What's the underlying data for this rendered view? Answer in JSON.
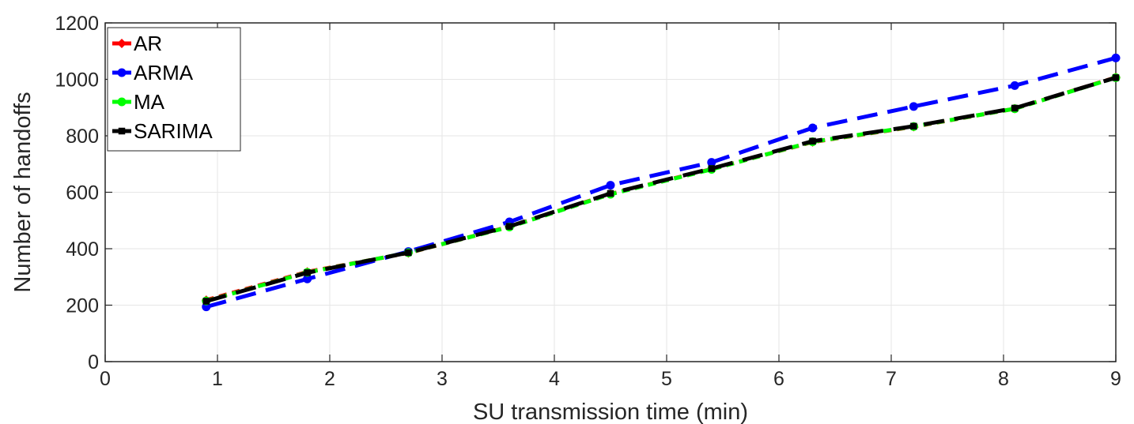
{
  "chart_data": {
    "type": "line",
    "title": "",
    "xlabel": "SU transmission time (min)",
    "ylabel": "Number of handoffs",
    "xlim": [
      0,
      9
    ],
    "ylim": [
      0,
      1200
    ],
    "xticks": [
      0,
      1,
      2,
      3,
      4,
      5,
      6,
      7,
      8,
      9
    ],
    "yticks": [
      0,
      200,
      400,
      600,
      800,
      1000,
      1200
    ],
    "grid": true,
    "legend_position": "top-left",
    "x": [
      0.9,
      1.8,
      2.7,
      3.6,
      4.5,
      5.4,
      6.3,
      7.2,
      8.1,
      9.0
    ],
    "series": [
      {
        "name": "AR",
        "color": "#ff0000",
        "line_style": "dotted",
        "marker": "diamond",
        "values": [
          218,
          318,
          385,
          478,
          594,
          682,
          778,
          832,
          896,
          1007
        ]
      },
      {
        "name": "ARMA",
        "color": "#0000ff",
        "line_style": "dashed",
        "marker": "circle",
        "values": [
          194,
          293,
          390,
          495,
          625,
          706,
          828,
          904,
          978,
          1076
        ]
      },
      {
        "name": "MA",
        "color": "#00ff00",
        "line_style": "dotted",
        "marker": "circle",
        "values": [
          215,
          316,
          386,
          477,
          593,
          681,
          779,
          833,
          896,
          1006
        ]
      },
      {
        "name": "SARIMA",
        "color": "#000000",
        "line_style": "dashed",
        "marker": "square",
        "values": [
          214,
          315,
          386,
          479,
          596,
          684,
          781,
          834,
          898,
          1006
        ]
      }
    ]
  }
}
